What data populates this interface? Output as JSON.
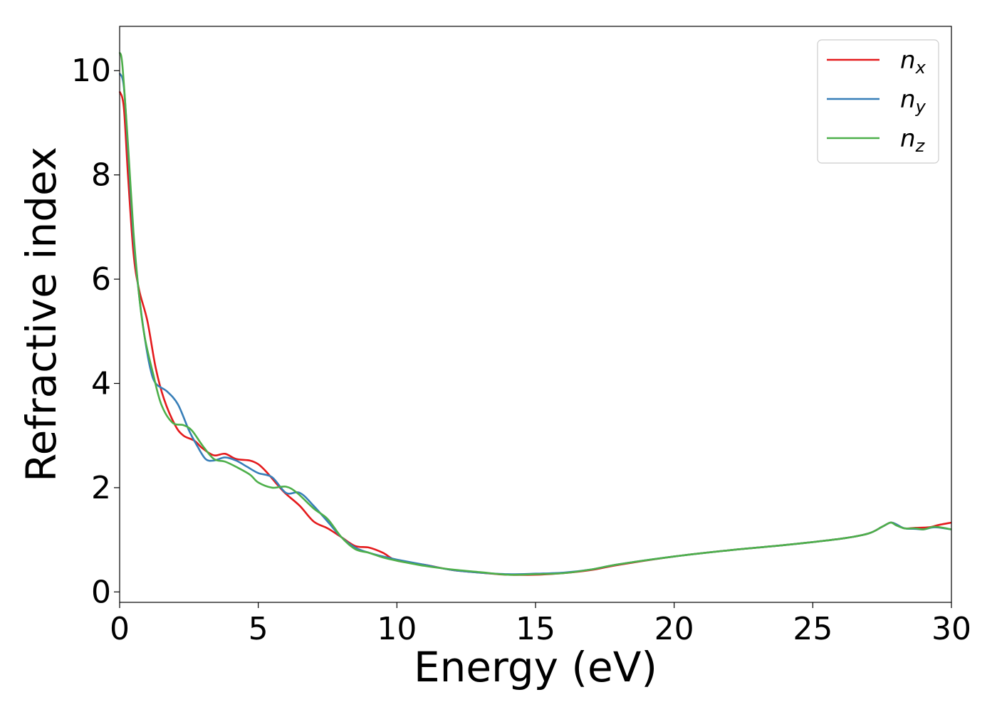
{
  "chart_data": {
    "type": "line",
    "title": "",
    "xlabel": "Energy (eV)",
    "ylabel": "Refractive index",
    "xlim": [
      0,
      30
    ],
    "ylim": [
      -0.2,
      10.85
    ],
    "xticks": [
      0,
      5,
      10,
      15,
      20,
      25,
      30
    ],
    "yticks": [
      0,
      2,
      4,
      6,
      8,
      10
    ],
    "grid": false,
    "legend_position": "top-right",
    "series": [
      {
        "name": "n_x",
        "label_base": "n",
        "label_sub": "x",
        "color": "#e41a1c",
        "points": [
          [
            0,
            9.6
          ],
          [
            0.15,
            9.3
          ],
          [
            0.3,
            8.0
          ],
          [
            0.5,
            6.5
          ],
          [
            0.7,
            5.8
          ],
          [
            1.0,
            5.2
          ],
          [
            1.3,
            4.3
          ],
          [
            1.6,
            3.7
          ],
          [
            2.0,
            3.2
          ],
          [
            2.3,
            3.0
          ],
          [
            2.7,
            2.9
          ],
          [
            3.0,
            2.75
          ],
          [
            3.4,
            2.62
          ],
          [
            3.8,
            2.65
          ],
          [
            4.2,
            2.55
          ],
          [
            4.7,
            2.52
          ],
          [
            5.0,
            2.45
          ],
          [
            5.3,
            2.3
          ],
          [
            5.7,
            2.05
          ],
          [
            6.0,
            1.88
          ],
          [
            6.5,
            1.65
          ],
          [
            7.0,
            1.35
          ],
          [
            7.5,
            1.22
          ],
          [
            8.0,
            1.05
          ],
          [
            8.5,
            0.88
          ],
          [
            9.0,
            0.85
          ],
          [
            9.5,
            0.75
          ],
          [
            10.0,
            0.6
          ],
          [
            11.0,
            0.52
          ],
          [
            12.0,
            0.42
          ],
          [
            13.0,
            0.37
          ],
          [
            14.0,
            0.33
          ],
          [
            15.0,
            0.33
          ],
          [
            16.0,
            0.36
          ],
          [
            17.0,
            0.42
          ],
          [
            18.0,
            0.52
          ],
          [
            20.0,
            0.68
          ],
          [
            22.0,
            0.8
          ],
          [
            24.0,
            0.9
          ],
          [
            26.0,
            1.02
          ],
          [
            27.0,
            1.12
          ],
          [
            27.5,
            1.25
          ],
          [
            27.8,
            1.33
          ],
          [
            28.0,
            1.3
          ],
          [
            28.3,
            1.22
          ],
          [
            28.7,
            1.23
          ],
          [
            29.2,
            1.24
          ],
          [
            29.5,
            1.28
          ],
          [
            30.0,
            1.33
          ]
        ]
      },
      {
        "name": "n_y",
        "label_base": "n",
        "label_sub": "y",
        "color": "#377eb8",
        "points": [
          [
            0,
            9.95
          ],
          [
            0.15,
            9.7
          ],
          [
            0.3,
            8.5
          ],
          [
            0.5,
            6.8
          ],
          [
            0.7,
            5.7
          ],
          [
            0.9,
            4.9
          ],
          [
            1.1,
            4.3
          ],
          [
            1.3,
            4.0
          ],
          [
            1.7,
            3.85
          ],
          [
            2.1,
            3.6
          ],
          [
            2.5,
            3.1
          ],
          [
            2.8,
            2.8
          ],
          [
            3.1,
            2.55
          ],
          [
            3.4,
            2.52
          ],
          [
            3.8,
            2.58
          ],
          [
            4.2,
            2.52
          ],
          [
            4.6,
            2.4
          ],
          [
            5.0,
            2.28
          ],
          [
            5.5,
            2.2
          ],
          [
            6.0,
            1.9
          ],
          [
            6.5,
            1.9
          ],
          [
            7.0,
            1.65
          ],
          [
            7.5,
            1.35
          ],
          [
            8.0,
            1.05
          ],
          [
            8.5,
            0.85
          ],
          [
            9.0,
            0.75
          ],
          [
            9.5,
            0.68
          ],
          [
            10.0,
            0.62
          ],
          [
            11.0,
            0.52
          ],
          [
            12.0,
            0.42
          ],
          [
            13.0,
            0.37
          ],
          [
            14.0,
            0.34
          ],
          [
            15.0,
            0.35
          ],
          [
            16.0,
            0.37
          ],
          [
            17.0,
            0.43
          ],
          [
            18.0,
            0.53
          ],
          [
            20.0,
            0.68
          ],
          [
            22.0,
            0.8
          ],
          [
            24.0,
            0.9
          ],
          [
            26.0,
            1.02
          ],
          [
            27.0,
            1.12
          ],
          [
            27.5,
            1.25
          ],
          [
            27.8,
            1.33
          ],
          [
            28.0,
            1.3
          ],
          [
            28.3,
            1.22
          ],
          [
            28.7,
            1.21
          ],
          [
            29.0,
            1.2
          ],
          [
            29.4,
            1.24
          ],
          [
            30.0,
            1.2
          ]
        ]
      },
      {
        "name": "n_z",
        "label_base": "n",
        "label_sub": "z",
        "color": "#4daf4a",
        "points": [
          [
            0,
            10.35
          ],
          [
            0.1,
            10.1
          ],
          [
            0.3,
            8.6
          ],
          [
            0.5,
            6.9
          ],
          [
            0.7,
            5.7
          ],
          [
            0.9,
            4.9
          ],
          [
            1.2,
            4.2
          ],
          [
            1.5,
            3.6
          ],
          [
            1.9,
            3.25
          ],
          [
            2.3,
            3.2
          ],
          [
            2.6,
            3.1
          ],
          [
            3.0,
            2.8
          ],
          [
            3.4,
            2.55
          ],
          [
            3.8,
            2.5
          ],
          [
            4.2,
            2.4
          ],
          [
            4.7,
            2.25
          ],
          [
            5.0,
            2.1
          ],
          [
            5.5,
            2.0
          ],
          [
            6.0,
            2.02
          ],
          [
            6.4,
            1.9
          ],
          [
            7.0,
            1.6
          ],
          [
            7.5,
            1.4
          ],
          [
            8.0,
            1.05
          ],
          [
            8.5,
            0.82
          ],
          [
            9.0,
            0.75
          ],
          [
            9.5,
            0.66
          ],
          [
            10.0,
            0.6
          ],
          [
            11.0,
            0.5
          ],
          [
            12.0,
            0.43
          ],
          [
            13.0,
            0.38
          ],
          [
            14.0,
            0.33
          ],
          [
            15.0,
            0.34
          ],
          [
            16.0,
            0.36
          ],
          [
            17.0,
            0.43
          ],
          [
            18.0,
            0.53
          ],
          [
            20.0,
            0.68
          ],
          [
            22.0,
            0.8
          ],
          [
            24.0,
            0.9
          ],
          [
            26.0,
            1.02
          ],
          [
            27.0,
            1.12
          ],
          [
            27.5,
            1.25
          ],
          [
            27.8,
            1.33
          ],
          [
            28.0,
            1.28
          ],
          [
            28.3,
            1.22
          ],
          [
            28.7,
            1.22
          ],
          [
            29.0,
            1.2
          ],
          [
            29.4,
            1.25
          ],
          [
            30.0,
            1.2
          ]
        ]
      }
    ]
  }
}
